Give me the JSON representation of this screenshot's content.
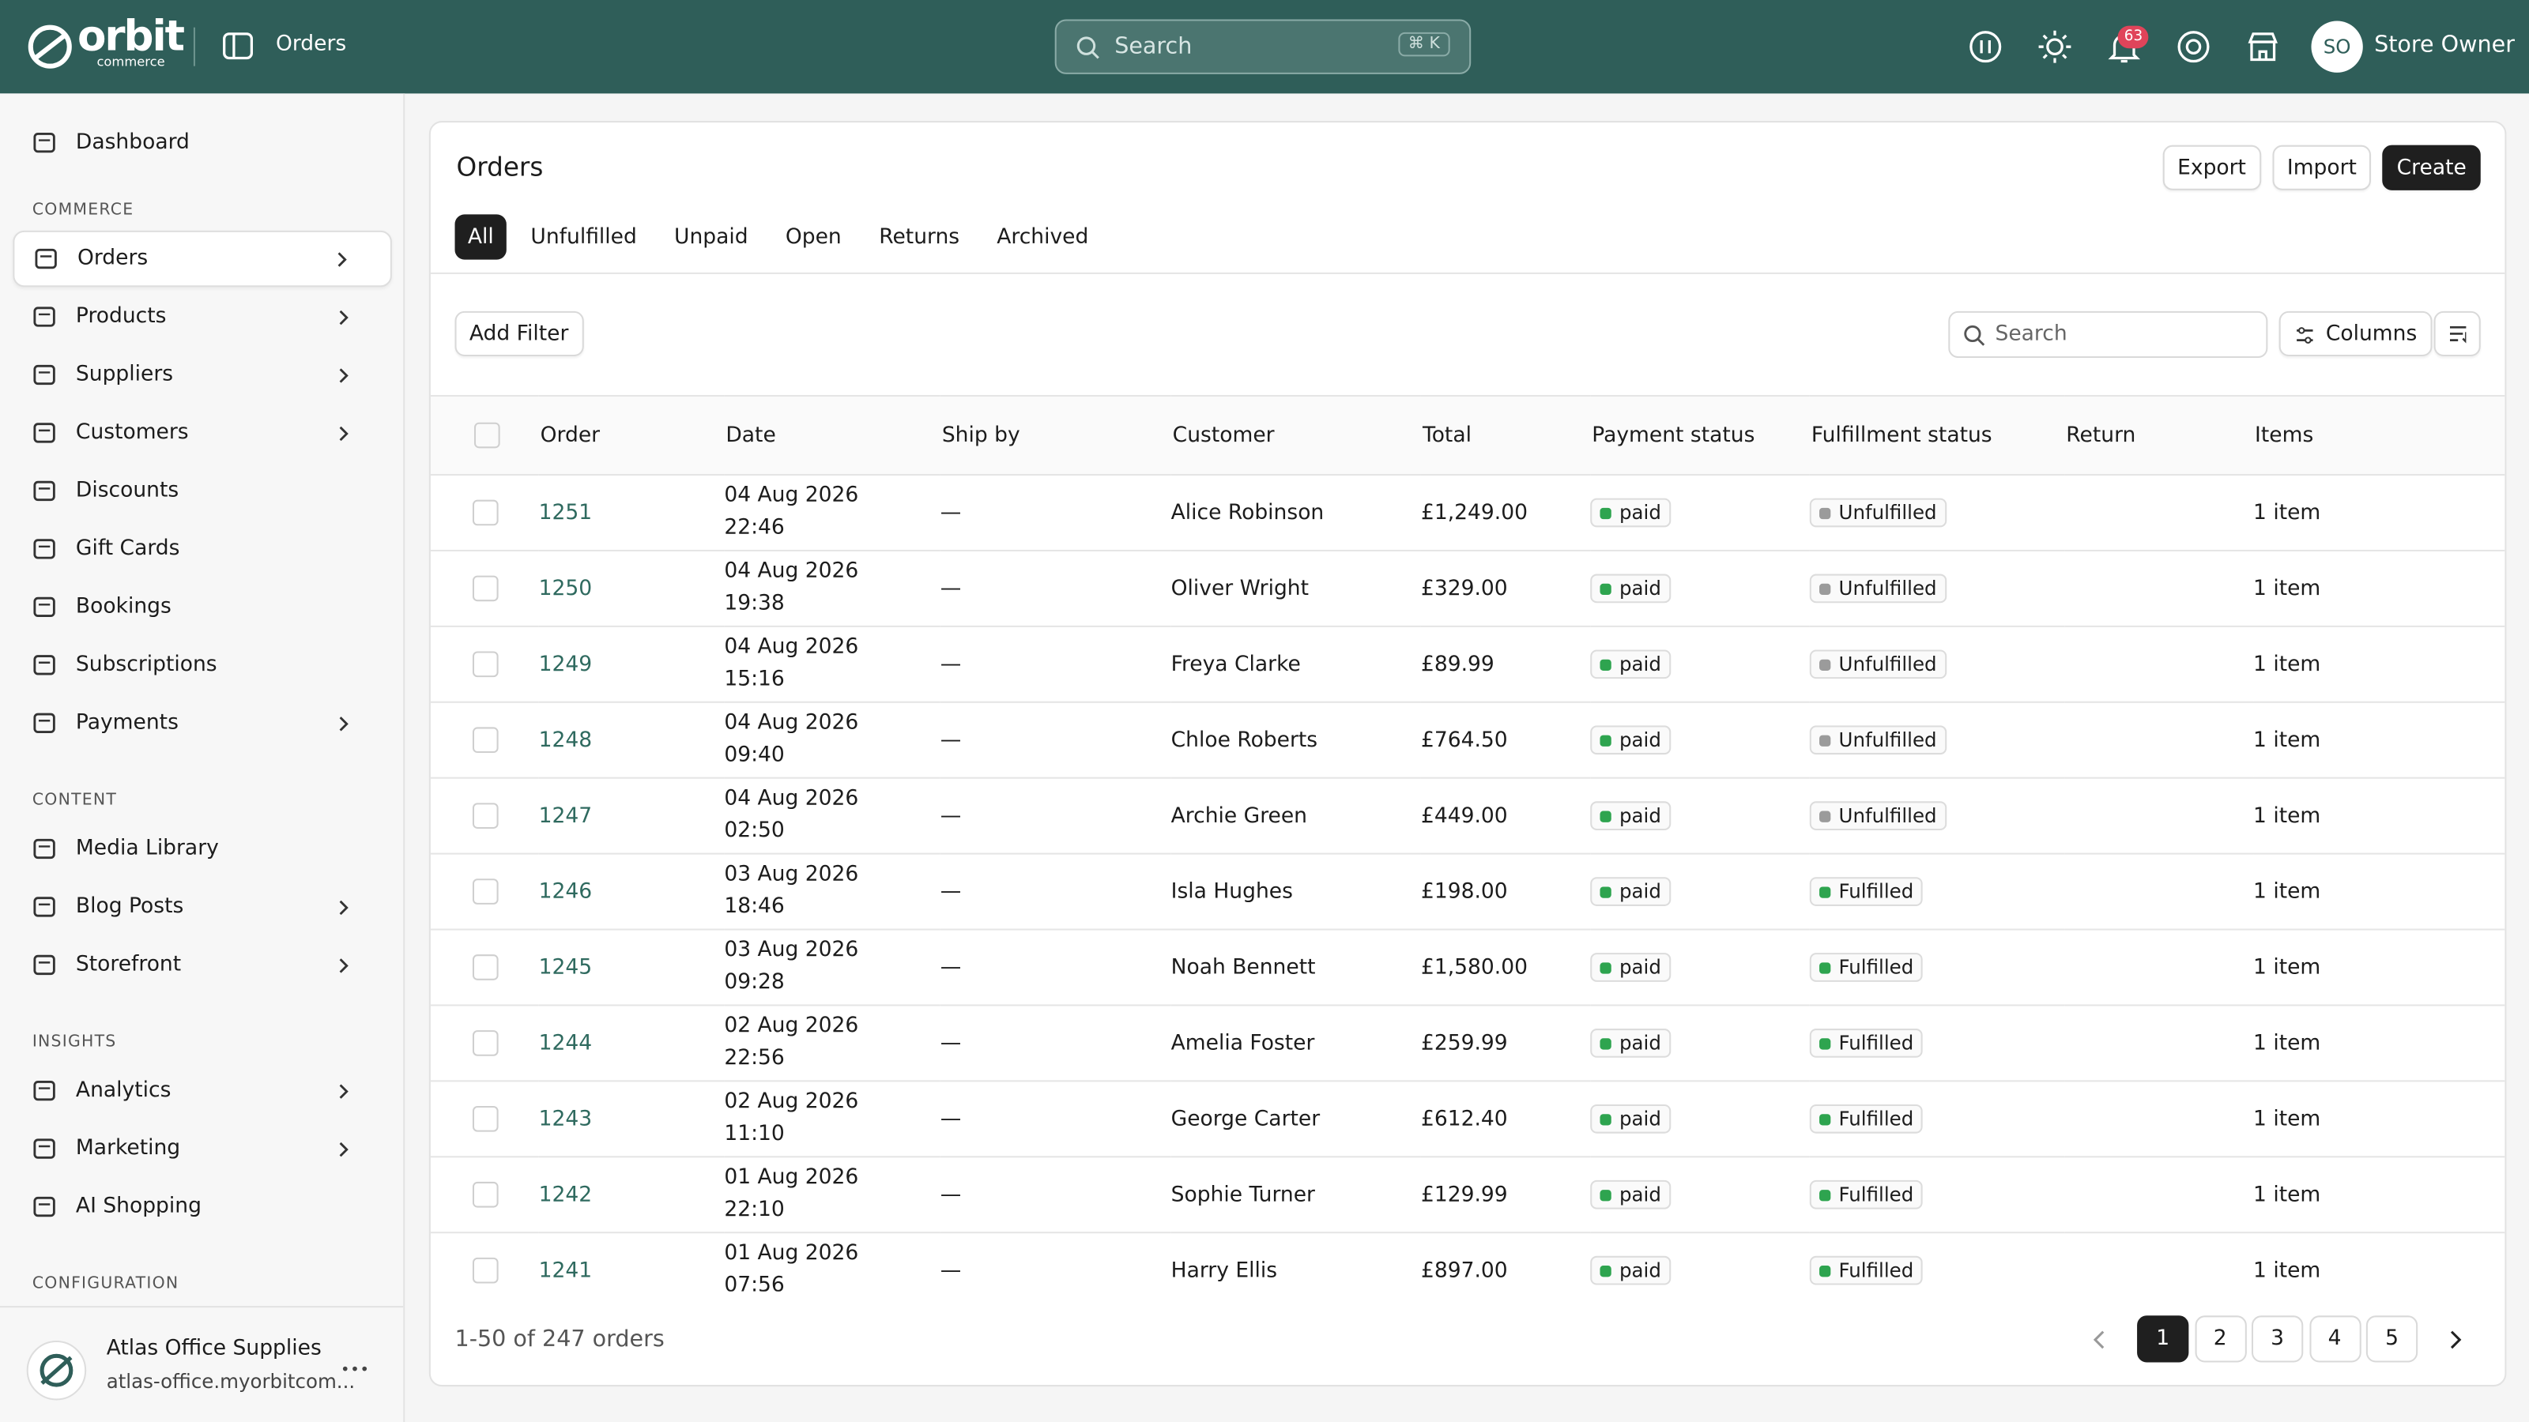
{
  "header": {
    "logo": "orbit",
    "logo_sub": "commerce",
    "page": "Orders",
    "search": "Search",
    "shortcut": "⌘ K",
    "notifications": "63",
    "avatar": "SO",
    "user": "Store Owner"
  },
  "sidebar": {
    "top": [
      {
        "label": "Dashboard",
        "chevron": false
      }
    ],
    "groups": [
      {
        "title": "COMMERCE",
        "items": [
          {
            "label": "Orders",
            "chevron": true
          },
          {
            "label": "Products",
            "chevron": true
          },
          {
            "label": "Suppliers",
            "chevron": true
          },
          {
            "label": "Customers",
            "chevron": true
          },
          {
            "label": "Discounts",
            "chevron": false
          },
          {
            "label": "Gift Cards",
            "chevron": false
          },
          {
            "label": "Bookings",
            "chevron": false
          },
          {
            "label": "Subscriptions",
            "chevron": false
          },
          {
            "label": "Payments",
            "chevron": true
          }
        ]
      },
      {
        "title": "CONTENT",
        "items": [
          {
            "label": "Media Library",
            "chevron": false
          },
          {
            "label": "Blog Posts",
            "chevron": true
          },
          {
            "label": "Storefront",
            "chevron": true
          }
        ]
      },
      {
        "title": "INSIGHTS",
        "items": [
          {
            "label": "Analytics",
            "chevron": true
          },
          {
            "label": "Marketing",
            "chevron": true
          },
          {
            "label": "AI Shopping",
            "chevron": false
          }
        ]
      },
      {
        "title": "CONFIGURATION",
        "items": []
      }
    ],
    "selected": "Orders",
    "store": {
      "name": "Atlas Office Supplies",
      "url": "atlas-office.myorbitcom..."
    }
  },
  "page": {
    "title": "Orders",
    "actions": [
      "Export",
      "Import",
      "Create"
    ],
    "tabs": [
      "All",
      "Unfulfilled",
      "Unpaid",
      "Open",
      "Returns",
      "Archived"
    ],
    "active_tab": 0,
    "add_filter": "Add Filter",
    "search": "Search",
    "columns_button": "Columns",
    "table": {
      "columns": [
        "Order",
        "Date",
        "Ship by",
        "Customer",
        "Total",
        "Payment status",
        "Fulfillment status",
        "Return",
        "Items"
      ],
      "status_colors": {
        "paid": "#2ea44f",
        "Fulfilled": "#2ea44f",
        "Unfulfilled": "#9b9b9b"
      },
      "rows": [
        {
          "order": "1251",
          "date": "04 Aug 2026 22:46",
          "ship_by": "—",
          "customer": "Alice Robinson",
          "total": "£1,249.00",
          "payment": "paid",
          "fulfillment": "Unfulfilled",
          "items": "1 item"
        },
        {
          "order": "1250",
          "date": "04 Aug 2026 19:38",
          "ship_by": "—",
          "customer": "Oliver Wright",
          "total": "£329.00",
          "payment": "paid",
          "fulfillment": "Unfulfilled",
          "items": "1 item"
        },
        {
          "order": "1249",
          "date": "04 Aug 2026 15:16",
          "ship_by": "—",
          "customer": "Freya Clarke",
          "total": "£89.99",
          "payment": "paid",
          "fulfillment": "Unfulfilled",
          "items": "1 item"
        },
        {
          "order": "1248",
          "date": "04 Aug 2026 09:40",
          "ship_by": "—",
          "customer": "Chloe Roberts",
          "total": "£764.50",
          "payment": "paid",
          "fulfillment": "Unfulfilled",
          "items": "1 item"
        },
        {
          "order": "1247",
          "date": "04 Aug 2026 02:50",
          "ship_by": "—",
          "customer": "Archie Green",
          "total": "£449.00",
          "payment": "paid",
          "fulfillment": "Unfulfilled",
          "items": "1 item"
        },
        {
          "order": "1246",
          "date": "03 Aug 2026 18:46",
          "ship_by": "—",
          "customer": "Isla Hughes",
          "total": "£198.00",
          "payment": "paid",
          "fulfillment": "Fulfilled",
          "items": "1 item"
        },
        {
          "order": "1245",
          "date": "03 Aug 2026 09:28",
          "ship_by": "—",
          "customer": "Noah Bennett",
          "total": "£1,580.00",
          "payment": "paid",
          "fulfillment": "Fulfilled",
          "items": "1 item"
        },
        {
          "order": "1244",
          "date": "02 Aug 2026 22:56",
          "ship_by": "—",
          "customer": "Amelia Foster",
          "total": "£259.99",
          "payment": "paid",
          "fulfillment": "Fulfilled",
          "items": "1 item"
        },
        {
          "order": "1243",
          "date": "02 Aug 2026 11:10",
          "ship_by": "—",
          "customer": "George Carter",
          "total": "£612.40",
          "payment": "paid",
          "fulfillment": "Fulfilled",
          "items": "1 item"
        },
        {
          "order": "1242",
          "date": "01 Aug 2026 22:10",
          "ship_by": "—",
          "customer": "Sophie Turner",
          "total": "£129.99",
          "payment": "paid",
          "fulfillment": "Fulfilled",
          "items": "1 item"
        },
        {
          "order": "1241",
          "date": "01 Aug 2026 07:56",
          "ship_by": "—",
          "customer": "Harry Ellis",
          "total": "£897.00",
          "payment": "paid",
          "fulfillment": "Fulfilled",
          "items": "1 item"
        }
      ]
    },
    "footer": {
      "summary": "1-50 of 247 orders",
      "pages": [
        1,
        2,
        3,
        4,
        5
      ],
      "current": 0
    }
  }
}
